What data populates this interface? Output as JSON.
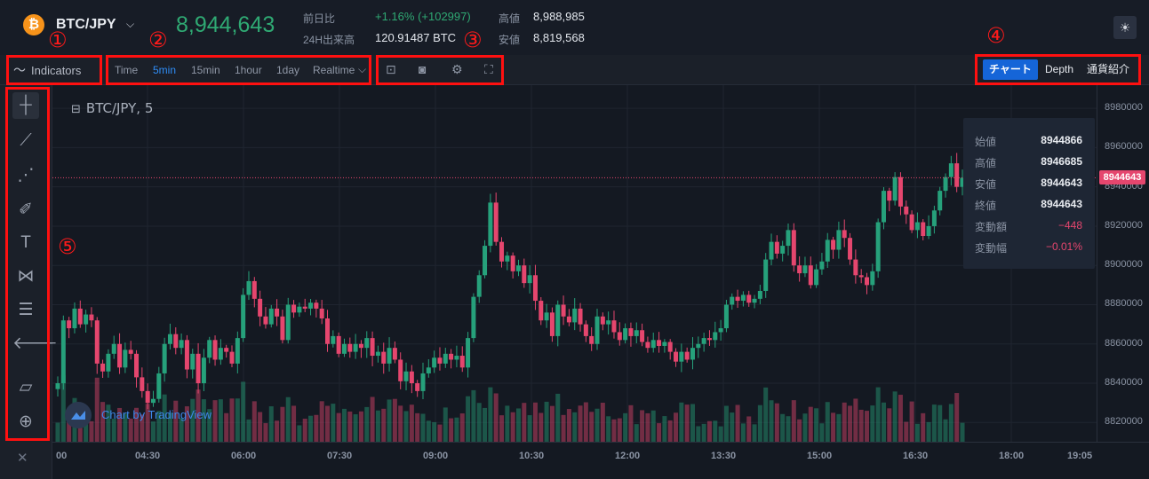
{
  "header": {
    "pair": "BTC/JPY",
    "last_price": "8,944,643",
    "change_label": "前日比",
    "change_value": "+1.16% (+102997)",
    "volume_label": "24H出来高",
    "volume_value": "120.91487 BTC",
    "high_label": "高値",
    "high_value": "8,988,985",
    "low_label": "安値",
    "low_value": "8,819,568",
    "theme_icon": "sun-icon"
  },
  "toolbar": {
    "indicators_label": "Indicators",
    "timeframes": [
      "Time",
      "5min",
      "15min",
      "1hour",
      "1day",
      "Realtime"
    ],
    "active_timeframe": "5min",
    "view_tabs": [
      "チャート",
      "Depth",
      "通貨紹介"
    ],
    "active_view": "チャート"
  },
  "annotations": [
    "①",
    "②",
    "③",
    "④",
    "⑤"
  ],
  "chart": {
    "title": "BTC/JPY, 5",
    "price_marker": "8944643",
    "watermark": "Chart by TradingView"
  },
  "tooltip": {
    "rows": [
      {
        "label": "始値",
        "value": "8944866"
      },
      {
        "label": "高値",
        "value": "8946685"
      },
      {
        "label": "安値",
        "value": "8944643"
      },
      {
        "label": "終値",
        "value": "8944643"
      },
      {
        "label": "変動額",
        "value": "−448"
      },
      {
        "label": "変動幅",
        "value": "−0.01%"
      }
    ]
  },
  "colors": {
    "up": "#26a17b",
    "down": "#e5466e",
    "accent": "#1565d8"
  },
  "chart_data": {
    "type": "candlestick",
    "title": "BTC/JPY, 5",
    "y_ticks": [
      "8980000",
      "8960000",
      "8940000",
      "8920000",
      "8900000",
      "8880000",
      "8860000",
      "8840000",
      "8820000"
    ],
    "x_ticks": [
      "00",
      "04:30",
      "06:00",
      "07:30",
      "09:00",
      "10:30",
      "12:00",
      "13:30",
      "15:00",
      "16:30",
      "18:00",
      "19:05"
    ],
    "ylim": [
      8812000,
      8990000
    ],
    "closes": [
      8840000,
      8872000,
      8868000,
      8878000,
      8870000,
      8875000,
      8872000,
      8850000,
      8846000,
      8855000,
      8860000,
      8848000,
      8857000,
      8855000,
      8843000,
      8836000,
      8830000,
      8832000,
      8845000,
      8860000,
      8865000,
      8858000,
      8862000,
      8847000,
      8855000,
      8840000,
      8853000,
      8862000,
      8852000,
      8858000,
      8856000,
      8850000,
      8863000,
      8885000,
      8892000,
      8883000,
      8874000,
      8870000,
      8878000,
      8874000,
      8862000,
      8880000,
      8876000,
      8879000,
      8878000,
      8881000,
      8878000,
      8873000,
      8860000,
      8864000,
      8855000,
      8860000,
      8856000,
      8860000,
      8858000,
      8863000,
      8854000,
      8856000,
      8850000,
      8858000,
      8852000,
      8841000,
      8846000,
      8840000,
      8836000,
      8845000,
      8848000,
      8853000,
      8850000,
      8855000,
      8852000,
      8854000,
      8848000,
      8863000,
      8884000,
      8895000,
      8910000,
      8932000,
      8912000,
      8902000,
      8905000,
      8897000,
      8900000,
      8891000,
      8895000,
      8882000,
      8872000,
      8876000,
      8864000,
      8880000,
      8874000,
      8871000,
      8878000,
      8870000,
      8864000,
      8860000,
      8874000,
      8870000,
      8872000,
      8866000,
      8862000,
      8868000,
      8864000,
      8867000,
      8861000,
      8858000,
      8862000,
      8859000,
      8861000,
      8856000,
      8851000,
      8856000,
      8852000,
      8858000,
      8860000,
      8863000,
      8862000,
      8866000,
      8868000,
      8880000,
      8884000,
      8882000,
      8885000,
      8881000,
      8883000,
      8887000,
      8903000,
      8912000,
      8906000,
      8910000,
      8918000,
      8900000,
      8896000,
      8900000,
      8890000,
      8898000,
      8902000,
      8913000,
      8908000,
      8918000,
      8914000,
      8903000,
      8895000,
      8894000,
      8890000,
      8897000,
      8922000,
      8938000,
      8933000,
      8945000,
      8930000,
      8926000,
      8918000,
      8922000,
      8915000,
      8920000,
      8928000,
      8938000,
      8945000,
      8952000,
      8940000,
      8944643
    ]
  }
}
